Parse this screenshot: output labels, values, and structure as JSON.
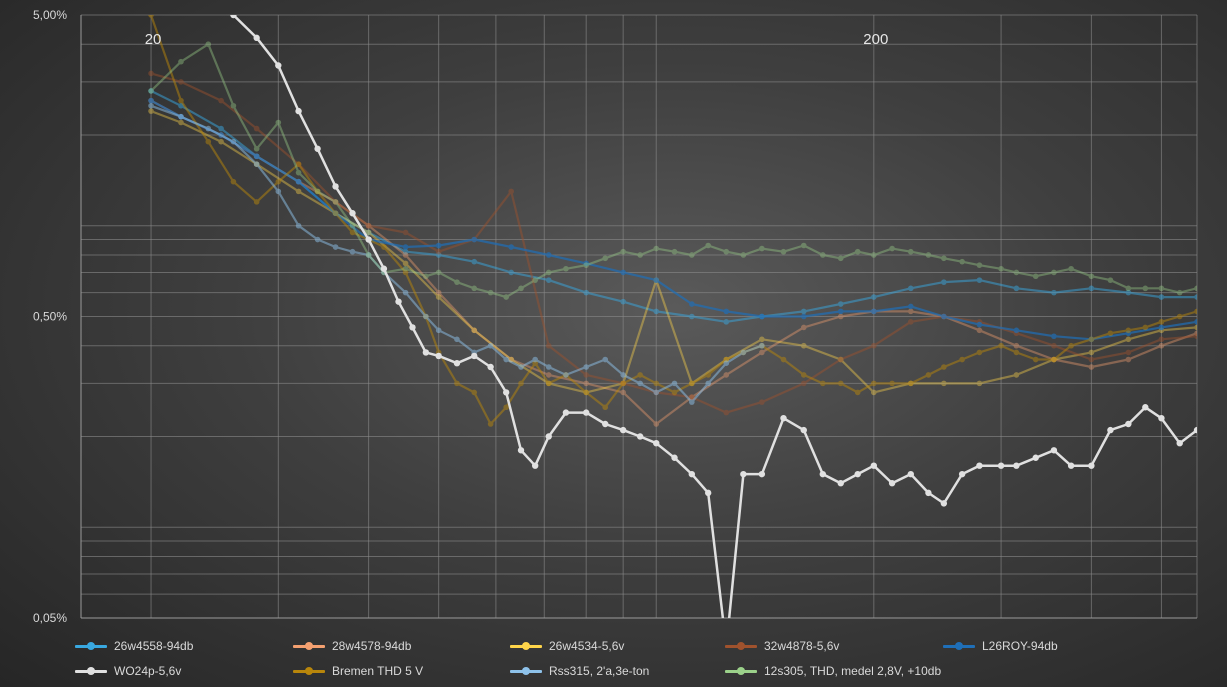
{
  "chart_data": {
    "type": "line",
    "title": "",
    "xlabel": "",
    "ylabel": "",
    "x_scale": "log",
    "y_scale": "log",
    "xlim": [
      16,
      560
    ],
    "ylim": [
      0.05,
      5.0
    ],
    "y_tick_labels": [
      {
        "value": 5.0,
        "label": "5,00%"
      },
      {
        "value": 0.5,
        "label": "0,50%"
      },
      {
        "value": 0.05,
        "label": "0,05%"
      }
    ],
    "x_tick_labels": [
      {
        "value": 20,
        "label": "20"
      },
      {
        "value": 200,
        "label": "200"
      }
    ],
    "grid": true,
    "legend_position": "bottom",
    "series": [
      {
        "name": "26w4558-94db",
        "color": "#39a8e0",
        "opacity": 0.5,
        "x": [
          20,
          22,
          25,
          28,
          32,
          36,
          40,
          45,
          50,
          56,
          63,
          71,
          80,
          90,
          100,
          112,
          125,
          140,
          160,
          180,
          200,
          225,
          250,
          280,
          315,
          355,
          400,
          450,
          500,
          560
        ],
        "y": [
          2.8,
          2.5,
          2.1,
          1.7,
          1.4,
          1.1,
          0.95,
          0.82,
          0.8,
          0.76,
          0.7,
          0.66,
          0.6,
          0.56,
          0.52,
          0.5,
          0.48,
          0.5,
          0.52,
          0.55,
          0.58,
          0.62,
          0.65,
          0.66,
          0.62,
          0.6,
          0.62,
          0.6,
          0.58,
          0.58
        ]
      },
      {
        "name": "28w4578-94db",
        "color": "#f4a070",
        "opacity": 0.4,
        "x": [
          20,
          22,
          25,
          28,
          32,
          36,
          40,
          45,
          50,
          56,
          63,
          71,
          80,
          90,
          100,
          112,
          125,
          140,
          160,
          180,
          200,
          225,
          250,
          280,
          315,
          355,
          400,
          450,
          500,
          560
        ],
        "y": [
          2.6,
          2.3,
          2.0,
          1.7,
          1.4,
          1.2,
          1.0,
          0.8,
          0.6,
          0.45,
          0.36,
          0.32,
          0.3,
          0.28,
          0.22,
          0.27,
          0.32,
          0.38,
          0.46,
          0.5,
          0.52,
          0.52,
          0.5,
          0.45,
          0.4,
          0.36,
          0.34,
          0.36,
          0.4,
          0.44
        ]
      },
      {
        "name": "26w4534-5,6v",
        "color": "#ffd54a",
        "opacity": 0.4,
        "x": [
          20,
          22,
          25,
          28,
          32,
          36,
          40,
          45,
          50,
          56,
          63,
          71,
          80,
          90,
          100,
          112,
          125,
          140,
          160,
          180,
          200,
          225,
          250,
          280,
          315,
          355,
          400,
          450,
          500,
          560
        ],
        "y": [
          2.4,
          2.2,
          1.9,
          1.6,
          1.3,
          1.1,
          0.95,
          0.75,
          0.58,
          0.45,
          0.36,
          0.3,
          0.28,
          0.3,
          0.66,
          0.3,
          0.36,
          0.42,
          0.4,
          0.36,
          0.28,
          0.3,
          0.3,
          0.3,
          0.32,
          0.36,
          0.38,
          0.42,
          0.45,
          0.46
        ]
      },
      {
        "name": "32w4878-5,6v",
        "color": "#a0522d",
        "opacity": 0.45,
        "x": [
          20,
          22,
          25,
          28,
          32,
          36,
          40,
          45,
          50,
          56,
          63,
          71,
          80,
          90,
          100,
          112,
          125,
          140,
          160,
          180,
          200,
          225,
          250,
          280,
          315,
          355,
          400,
          450,
          500,
          560
        ],
        "y": [
          3.2,
          3.0,
          2.6,
          2.1,
          1.6,
          1.2,
          1.0,
          0.95,
          0.82,
          0.9,
          1.3,
          0.4,
          0.32,
          0.3,
          0.28,
          0.27,
          0.24,
          0.26,
          0.3,
          0.36,
          0.4,
          0.48,
          0.5,
          0.48,
          0.44,
          0.4,
          0.36,
          0.38,
          0.42,
          0.43
        ]
      },
      {
        "name": "L26ROY-94db",
        "color": "#1f6fb8",
        "opacity": 0.7,
        "x": [
          20,
          22,
          25,
          28,
          32,
          36,
          40,
          45,
          50,
          56,
          63,
          71,
          80,
          90,
          100,
          112,
          125,
          140,
          160,
          180,
          200,
          225,
          250,
          280,
          315,
          355,
          400,
          450,
          500,
          560
        ],
        "y": [
          2.6,
          2.3,
          2.0,
          1.7,
          1.4,
          1.1,
          0.9,
          0.85,
          0.86,
          0.9,
          0.85,
          0.8,
          0.75,
          0.7,
          0.66,
          0.55,
          0.52,
          0.5,
          0.5,
          0.52,
          0.52,
          0.54,
          0.5,
          0.47,
          0.45,
          0.43,
          0.42,
          0.44,
          0.46,
          0.48
        ]
      },
      {
        "name": "WO24p-5,6v",
        "color": "#e0e0e0",
        "opacity": 1.0,
        "x": [
          26,
          28,
          30,
          32,
          34,
          36,
          38,
          40,
          42,
          44,
          46,
          48,
          50,
          53,
          56,
          59,
          62,
          65,
          68,
          71,
          75,
          80,
          85,
          90,
          95,
          100,
          106,
          112,
          118,
          125,
          132,
          140,
          150,
          160,
          170,
          180,
          190,
          200,
          212,
          225,
          238,
          250,
          265,
          280,
          300,
          315,
          335,
          355,
          375,
          400,
          425,
          450,
          475,
          500,
          530,
          560
        ],
        "y": [
          5.0,
          4.2,
          3.4,
          2.4,
          1.8,
          1.35,
          1.1,
          0.9,
          0.72,
          0.56,
          0.46,
          0.38,
          0.37,
          0.35,
          0.37,
          0.34,
          0.28,
          0.18,
          0.16,
          0.2,
          0.24,
          0.24,
          0.22,
          0.21,
          0.2,
          0.19,
          0.17,
          0.15,
          0.13,
          0.04,
          0.15,
          0.15,
          0.23,
          0.21,
          0.15,
          0.14,
          0.15,
          0.16,
          0.14,
          0.15,
          0.13,
          0.12,
          0.15,
          0.16,
          0.16,
          0.16,
          0.17,
          0.18,
          0.16,
          0.16,
          0.21,
          0.22,
          0.25,
          0.23,
          0.19,
          0.21
        ]
      },
      {
        "name": "Bremen THD 5 V",
        "color": "#b8860b",
        "opacity": 0.5,
        "x": [
          20,
          22,
          24,
          26,
          28,
          30,
          32,
          34,
          36,
          38,
          40,
          42,
          45,
          48,
          50,
          53,
          56,
          59,
          62,
          65,
          68,
          71,
          75,
          80,
          85,
          90,
          95,
          100,
          106,
          112,
          118,
          125,
          132,
          140,
          150,
          160,
          170,
          180,
          190,
          200,
          212,
          225,
          238,
          250,
          265,
          280,
          300,
          315,
          335,
          355,
          375,
          400,
          425,
          450,
          475,
          500,
          530,
          560
        ],
        "y": [
          5.0,
          2.6,
          1.9,
          1.4,
          1.2,
          1.4,
          1.6,
          1.3,
          1.1,
          0.95,
          0.9,
          0.85,
          0.7,
          0.5,
          0.38,
          0.3,
          0.28,
          0.22,
          0.25,
          0.3,
          0.35,
          0.3,
          0.32,
          0.28,
          0.25,
          0.3,
          0.32,
          0.3,
          0.28,
          0.3,
          0.32,
          0.36,
          0.38,
          0.4,
          0.36,
          0.32,
          0.3,
          0.3,
          0.28,
          0.3,
          0.3,
          0.3,
          0.32,
          0.34,
          0.36,
          0.38,
          0.4,
          0.38,
          0.36,
          0.36,
          0.4,
          0.42,
          0.44,
          0.45,
          0.46,
          0.48,
          0.5,
          0.52
        ]
      },
      {
        "name": "Rss315, 2'a,3e-ton",
        "color": "#8ec2ea",
        "opacity": 0.5,
        "x": [
          20,
          22,
          24,
          26,
          28,
          30,
          32,
          34,
          36,
          38,
          40,
          42,
          45,
          48,
          50,
          53,
          56,
          59,
          62,
          65,
          68,
          71,
          75,
          80,
          85,
          90,
          95,
          100,
          106,
          112,
          118,
          125,
          132,
          140
        ],
        "y": [
          2.5,
          2.3,
          2.1,
          1.9,
          1.6,
          1.3,
          1.0,
          0.9,
          0.85,
          0.82,
          0.8,
          0.7,
          0.6,
          0.5,
          0.45,
          0.42,
          0.38,
          0.4,
          0.36,
          0.34,
          0.36,
          0.34,
          0.32,
          0.34,
          0.36,
          0.32,
          0.3,
          0.28,
          0.3,
          0.26,
          0.3,
          0.35,
          0.38,
          0.4
        ]
      },
      {
        "name": "12s305, THD, medel 2,8V, +10db",
        "color": "#9bd18a",
        "opacity": 0.4,
        "x": [
          20,
          22,
          24,
          26,
          28,
          30,
          32,
          34,
          36,
          38,
          40,
          42,
          45,
          48,
          50,
          53,
          56,
          59,
          62,
          65,
          68,
          71,
          75,
          80,
          85,
          90,
          95,
          100,
          106,
          112,
          118,
          125,
          132,
          140,
          150,
          160,
          170,
          180,
          190,
          200,
          212,
          225,
          238,
          250,
          265,
          280,
          300,
          315,
          335,
          355,
          375,
          400,
          425,
          450,
          475,
          500,
          530,
          560
        ],
        "y": [
          2.8,
          3.5,
          4.0,
          2.5,
          1.8,
          2.2,
          1.5,
          1.3,
          1.2,
          1.0,
          0.8,
          0.7,
          0.72,
          0.68,
          0.7,
          0.65,
          0.62,
          0.6,
          0.58,
          0.62,
          0.66,
          0.7,
          0.72,
          0.74,
          0.78,
          0.82,
          0.8,
          0.84,
          0.82,
          0.8,
          0.86,
          0.82,
          0.8,
          0.84,
          0.82,
          0.86,
          0.8,
          0.78,
          0.82,
          0.8,
          0.84,
          0.82,
          0.8,
          0.78,
          0.76,
          0.74,
          0.72,
          0.7,
          0.68,
          0.7,
          0.72,
          0.68,
          0.66,
          0.62,
          0.62,
          0.62,
          0.6,
          0.62
        ]
      }
    ]
  }
}
